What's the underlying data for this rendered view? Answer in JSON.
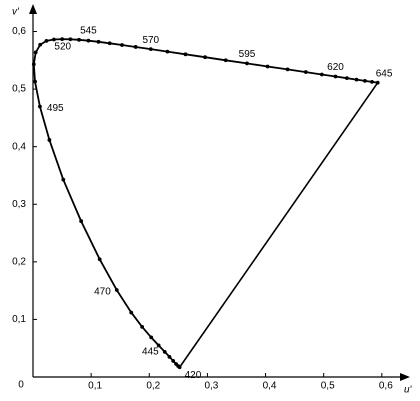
{
  "chart_data": {
    "type": "line",
    "x_label": "u'",
    "y_label": "v'",
    "x": [
      0.2522,
      0.2496,
      0.2461,
      0.2411,
      0.2347,
      0.2266,
      0.2161,
      0.2033,
      0.1877,
      0.169,
      0.1441,
      0.1147,
      0.0828,
      0.0521,
      0.0282,
      0.0119,
      0.0035,
      0.0014,
      0.0046,
      0.0123,
      0.0231,
      0.036,
      0.0501,
      0.0643,
      0.0792,
      0.0953,
      0.1127,
      0.1319,
      0.1531,
      0.1766,
      0.2026,
      0.2312,
      0.2623,
      0.296,
      0.3315,
      0.3681,
      0.4035,
      0.4379,
      0.4692,
      0.4968,
      0.5203,
      0.5399,
      0.5565,
      0.5709,
      0.583,
      0.5929
    ],
    "values": [
      0.0169,
      0.0191,
      0.0226,
      0.0279,
      0.035,
      0.0437,
      0.0549,
      0.0688,
      0.0871,
      0.1119,
      0.151,
      0.2044,
      0.2708,
      0.3427,
      0.4117,
      0.4698,
      0.5131,
      0.5432,
      0.5638,
      0.577,
      0.5837,
      0.5861,
      0.5868,
      0.5865,
      0.5856,
      0.5841,
      0.5821,
      0.5796,
      0.5766,
      0.5732,
      0.5694,
      0.5651,
      0.5604,
      0.5554,
      0.5501,
      0.5446,
      0.5393,
      0.5342,
      0.5296,
      0.5254,
      0.5219,
      0.519,
      0.5165,
      0.5143,
      0.5125,
      0.5111
    ],
    "point_labels": [
      "420",
      null,
      null,
      null,
      null,
      "445",
      null,
      null,
      null,
      null,
      "470",
      null,
      null,
      null,
      null,
      "495",
      null,
      null,
      null,
      null,
      "520",
      null,
      null,
      null,
      null,
      "545",
      null,
      null,
      null,
      null,
      "570",
      null,
      null,
      null,
      null,
      "595",
      null,
      null,
      null,
      null,
      "620",
      null,
      null,
      null,
      null,
      "645"
    ],
    "color": "#000000",
    "xlim": [
      0,
      0.645
    ],
    "ylim": [
      0,
      0.6478
    ],
    "xticks": [
      0,
      {
        "value": 0.1,
        "label": "0,1"
      },
      {
        "value": 0.2,
        "label": "0,2"
      },
      {
        "value": 0.3,
        "label": "0,3"
      },
      {
        "value": 0.4,
        "label": "0,4"
      },
      {
        "value": 0.5,
        "label": "0,5"
      },
      {
        "value": 0.6,
        "label": "0,6"
      }
    ],
    "yticks": [
      {
        "value": 0.1,
        "label": "0,1"
      },
      {
        "value": 0.2,
        "label": "0,2"
      },
      {
        "value": 0.3,
        "label": "0,3"
      },
      {
        "value": 0.4,
        "label": "0,4"
      },
      {
        "value": 0.5,
        "label": "0,5"
      },
      {
        "value": 0.6,
        "label": "0,6"
      }
    ]
  }
}
